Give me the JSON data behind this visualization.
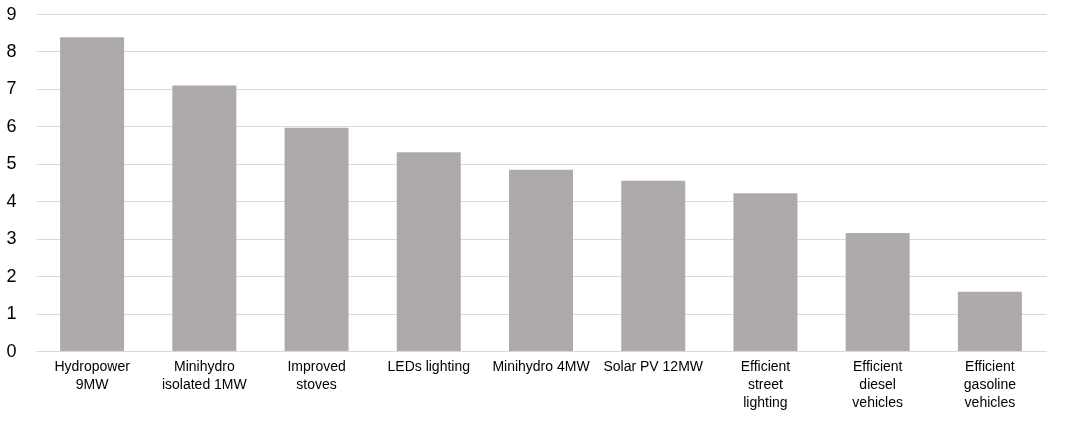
{
  "chart_data": {
    "type": "bar",
    "categories": [
      "Hydropower 9MW",
      "Minihydro isolated 1MW",
      "Improved stoves",
      "LEDs lighting",
      "Minihydro 4MW",
      "Solar PV 12MW",
      "Efficient street lighting",
      "Efficient diesel vehicles",
      "Efficient gasoline vehicles"
    ],
    "values": [
      8.38,
      7.09,
      5.96,
      5.31,
      4.84,
      4.55,
      4.21,
      3.15,
      1.58
    ],
    "color": "#aeaaaa",
    "ylim": [
      0,
      9
    ],
    "yticks": [
      0,
      1,
      2,
      3,
      4,
      5,
      6,
      7,
      8,
      9
    ],
    "grid": "y"
  }
}
